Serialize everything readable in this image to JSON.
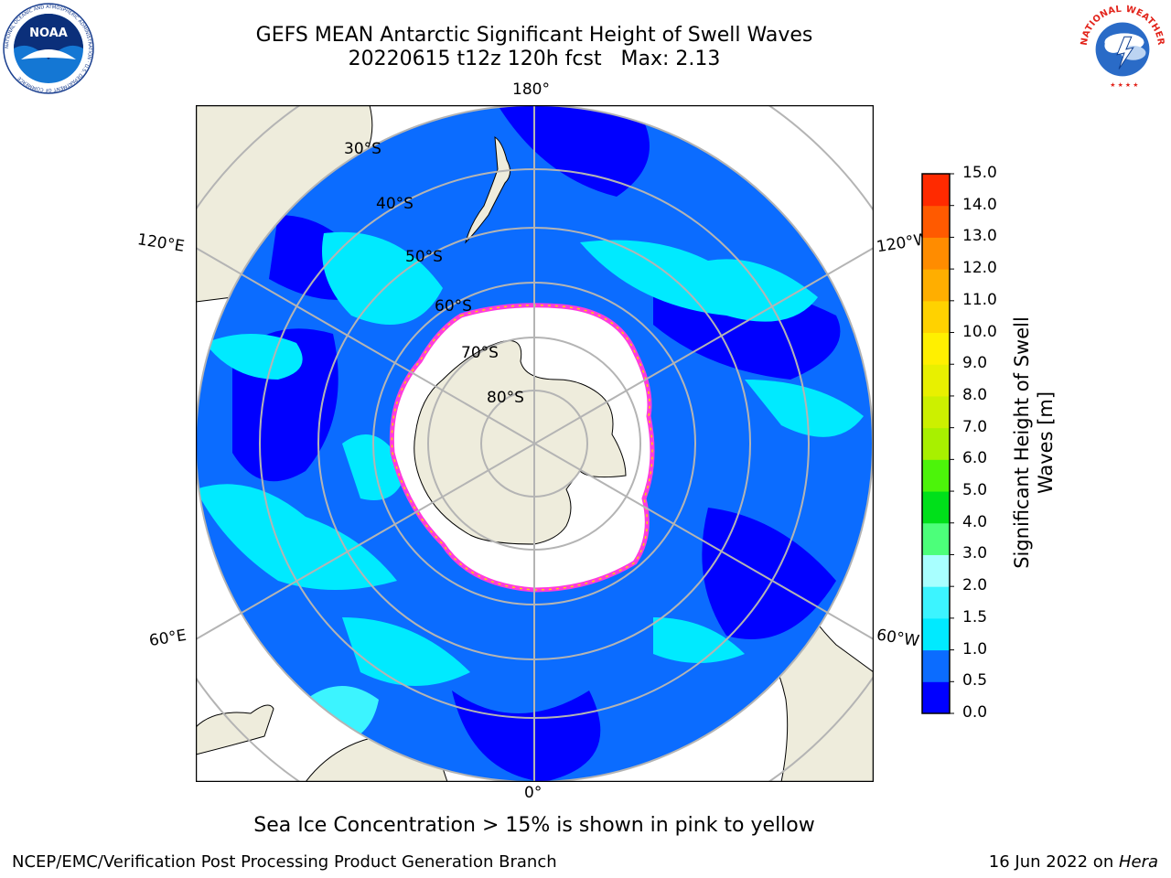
{
  "header": {
    "title_line1": "GEFS MEAN Antarctic Significant Height of Swell Waves",
    "title_line2": "20220615 t12z 120h fcst   Max: 2.13"
  },
  "logos": {
    "noaa_text": "NOAA",
    "noaa_ring": "NATIONAL OCEANIC AND ATMOSPHERIC ADMINISTRATION · U.S. DEPARTMENT OF COMMERCE",
    "nws_ring": "NATIONAL WEATHER SERVICE"
  },
  "map": {
    "projection": "south polar stereographic",
    "lat_labels": [
      "30°S",
      "40°S",
      "50°S",
      "60°S",
      "70°S",
      "80°S"
    ],
    "lon_labels": {
      "top": "180°",
      "bottom": "0°",
      "upper_left": "120°E",
      "lower_left": "60°E",
      "upper_right": "120°W",
      "lower_right": "60°W"
    },
    "colors": {
      "land": "#eeecdc",
      "sea_ice": "#ffffff",
      "ice_edge": "#ff3cdc",
      "grid": "#b4b4b4"
    }
  },
  "colorbar": {
    "label_line1": "Significant Height of Swell",
    "label_line2": "Waves [m]",
    "ticks": [
      "0.0",
      "0.5",
      "1.0",
      "1.5",
      "2.0",
      "3.0",
      "4.0",
      "5.0",
      "6.0",
      "7.0",
      "8.0",
      "9.0",
      "10.0",
      "11.0",
      "12.0",
      "13.0",
      "14.0",
      "15.0"
    ],
    "colors": [
      "#0000ff",
      "#0b6cff",
      "#00eaff",
      "#3cf4ff",
      "#a8ffff",
      "#4cff7a",
      "#00e01a",
      "#4cf40a",
      "#a8f000",
      "#ccf000",
      "#e8f000",
      "#fff000",
      "#ffd200",
      "#ffae00",
      "#ff8c00",
      "#ff5a00",
      "#ff2a00"
    ]
  },
  "footer": {
    "note": "Sea Ice Concentration > 15% is shown in pink to yellow",
    "left": "NCEP/EMC/Verification Post Processing Product Generation Branch",
    "right_date": "16 Jun 2022 on ",
    "right_host": "Hera"
  }
}
